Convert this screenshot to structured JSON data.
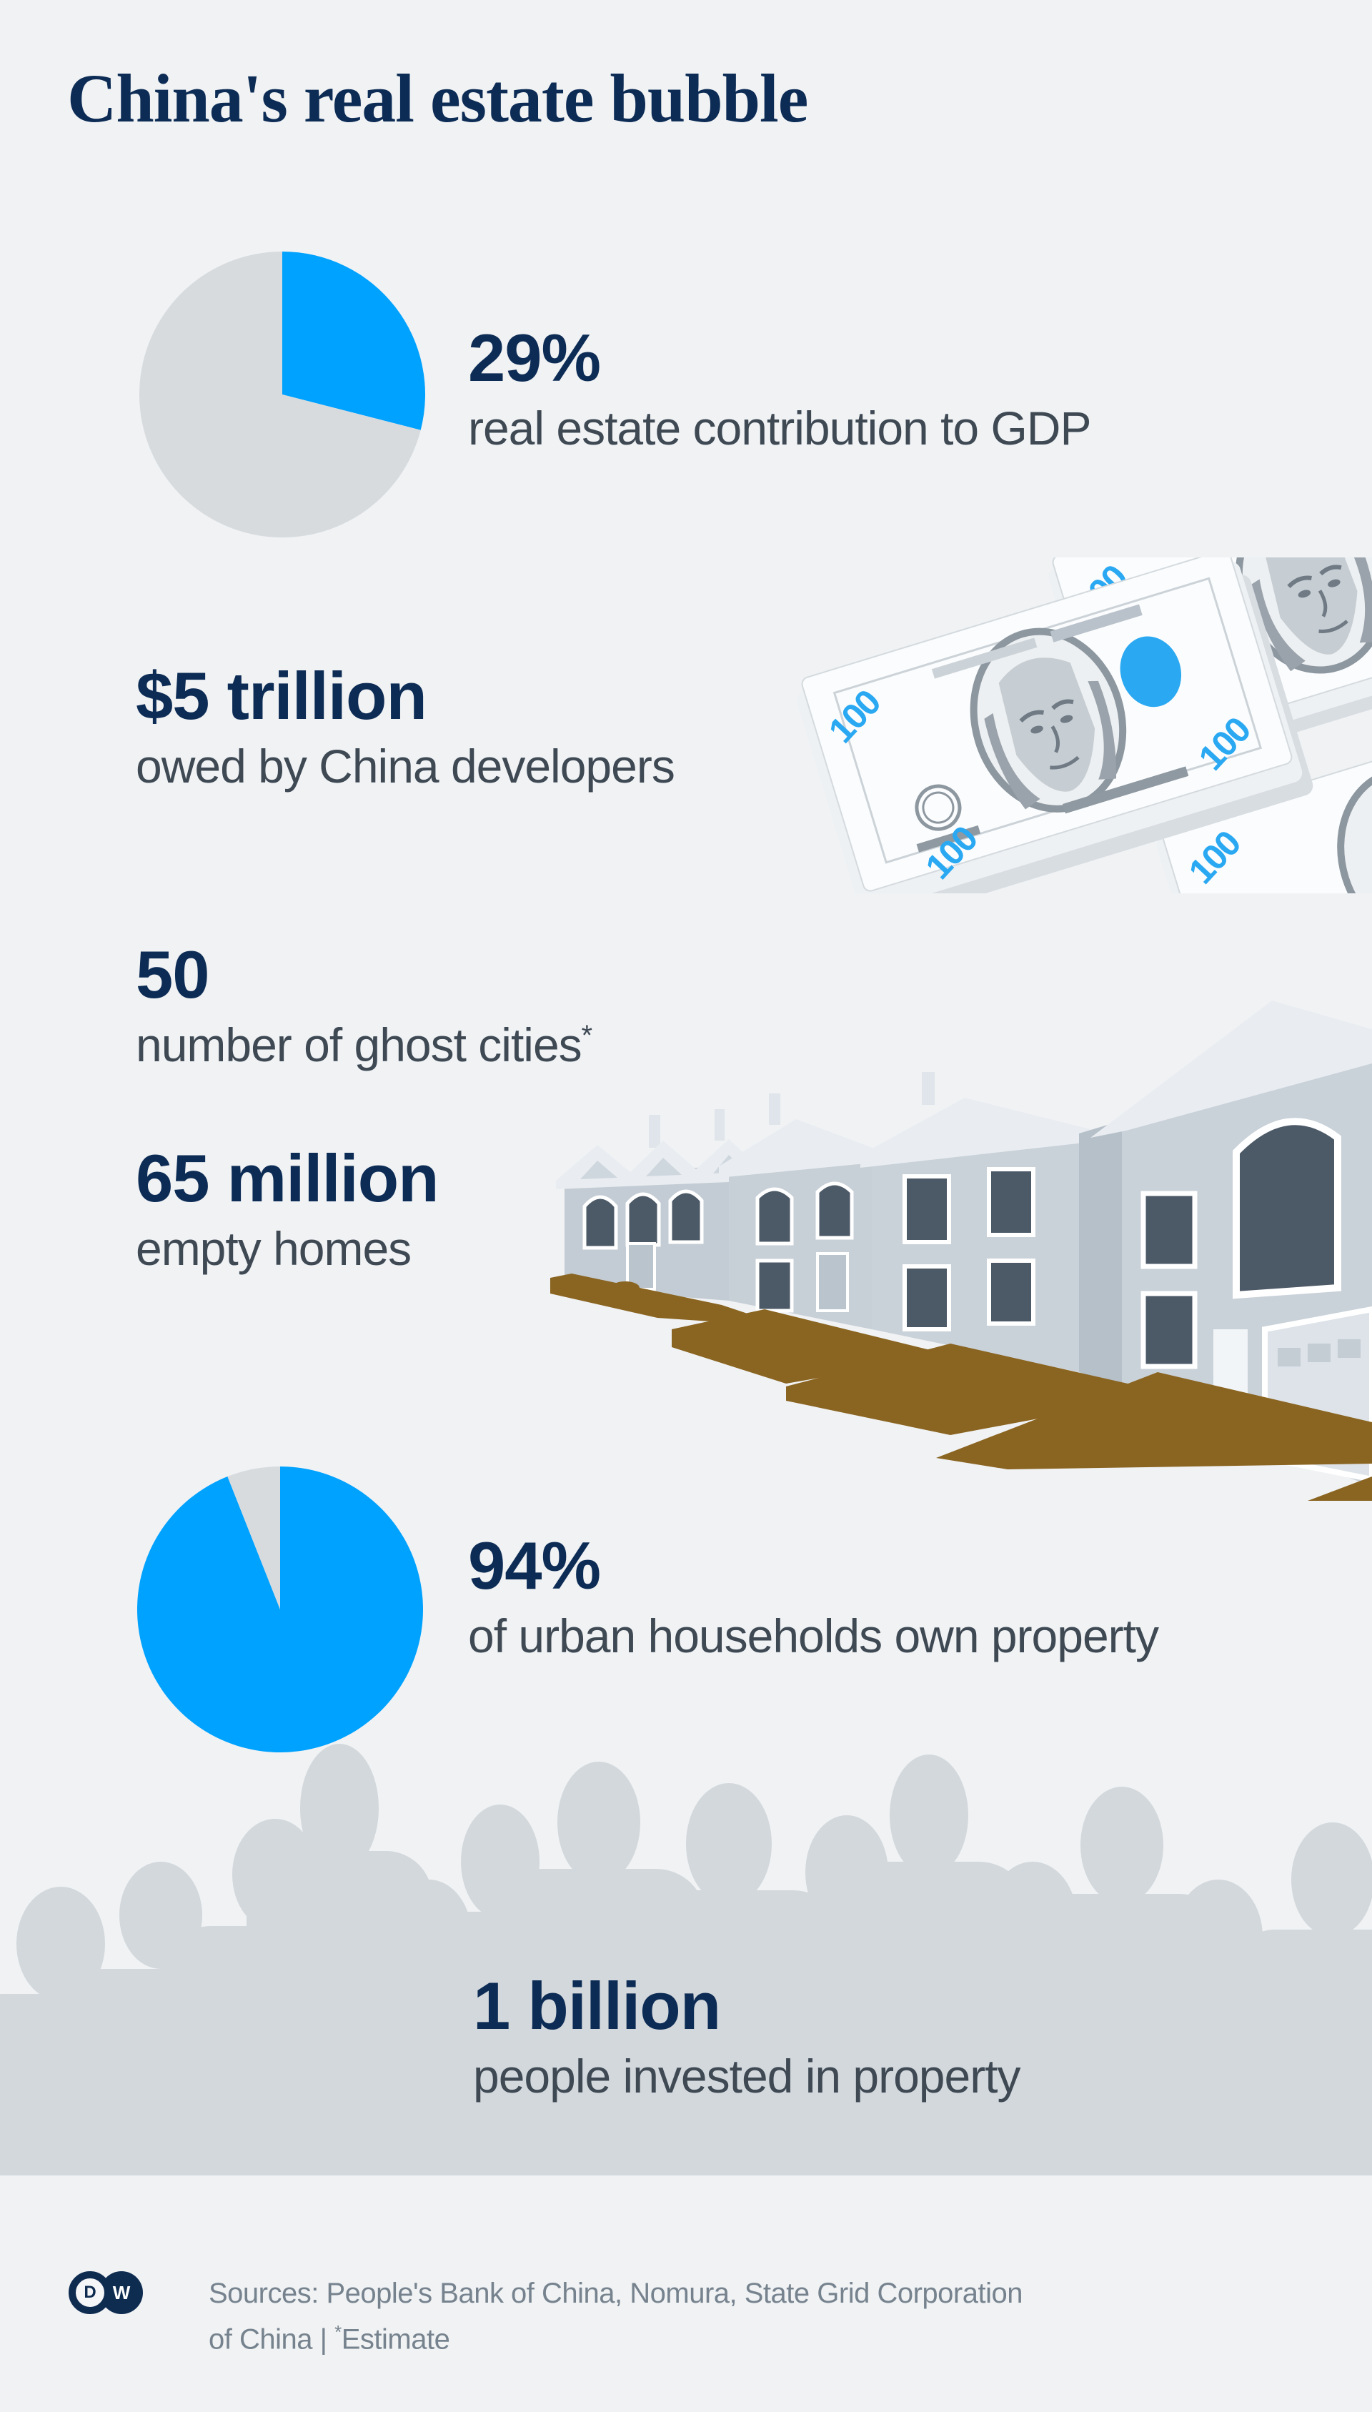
{
  "page": {
    "title": "China's real estate bubble",
    "background_color": "#f0f2f4"
  },
  "colors": {
    "accent_blue": "#00a2ff",
    "navy_text": "#0d2c55",
    "label_gray": "#3e4954",
    "pie_remainder_gray": "#d7dbde",
    "crowd_silhouette_gray": "#d3d8dc",
    "driveway_brown": "#8a6421",
    "footer_text_gray": "#76838e"
  },
  "stats": {
    "gdp": {
      "value": "29%",
      "label": "real estate contribution to GDP"
    },
    "debt": {
      "value": "$5 trillion",
      "label": "owed by China developers"
    },
    "ghost_cities": {
      "value": "50",
      "label": "number of ghost cities",
      "footnote_mark": "*"
    },
    "empty_homes": {
      "value": "65 million",
      "label": "empty homes"
    },
    "ownership": {
      "value": "94%",
      "label": "of urban households own property"
    },
    "investors": {
      "value": "1 billion",
      "label": "people invested in property"
    }
  },
  "chart_data": [
    {
      "type": "pie",
      "title": "real estate contribution to GDP",
      "value_label": "29%",
      "legend": "none",
      "slices": [
        {
          "label": "real estate contribution to GDP",
          "value": 29,
          "color": "#00a2ff"
        },
        {
          "label": "rest of GDP",
          "value": 71,
          "color": "#d7dbde"
        }
      ]
    },
    {
      "type": "pie",
      "title": "of urban households own property",
      "value_label": "94%",
      "legend": "none",
      "slices": [
        {
          "label": "urban households owning property",
          "value": 94,
          "color": "#00a2ff"
        },
        {
          "label": "households not owning property",
          "value": 6,
          "color": "#d7dbde"
        }
      ]
    }
  ],
  "money": {
    "denomination": "100"
  },
  "illustrations": {
    "money": "stacks of 100-dollar bills",
    "houses": "row of empty suburban houses with brown driveways",
    "crowd": "silhouette of a crowd of people"
  },
  "footer": {
    "logo_text_d": "D",
    "logo_text_w": "W",
    "sources_line1": "Sources: People's Bank of China, Nomura, State Grid Corporation",
    "sources_line2": "of China | ",
    "estimate_mark": "*",
    "estimate_word": "Estimate"
  }
}
